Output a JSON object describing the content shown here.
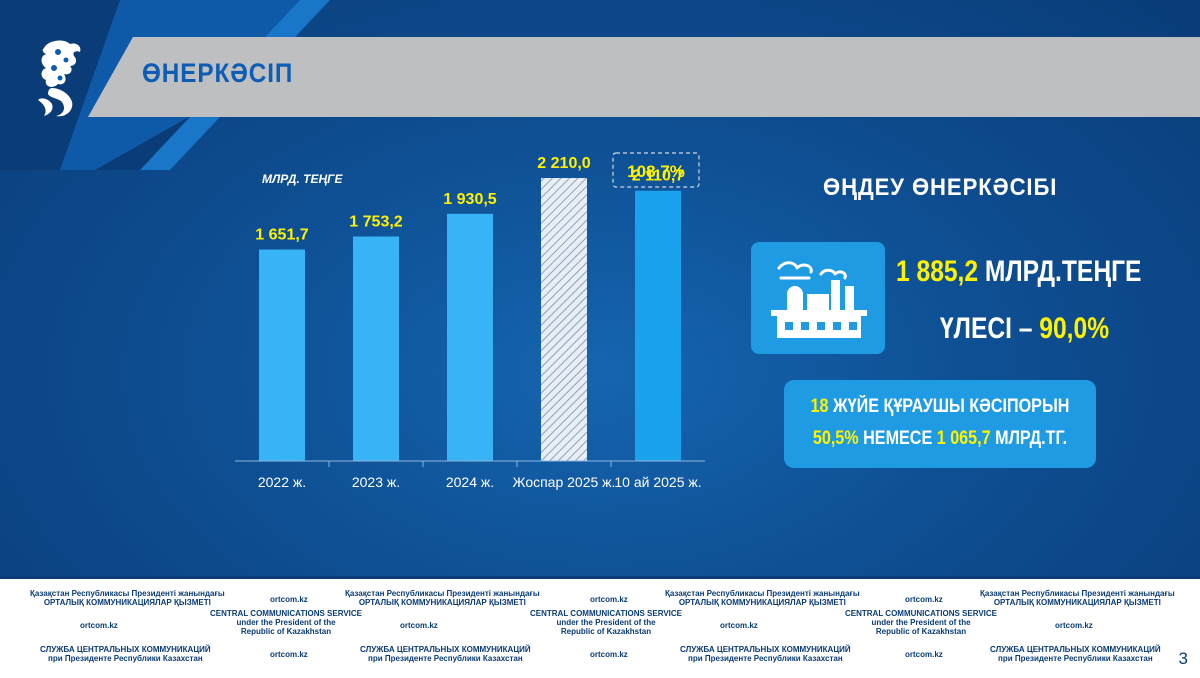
{
  "header": {
    "title": "ӨНЕРКӘСІП"
  },
  "chart_data": {
    "type": "bar",
    "unit_label": "МЛРД. ТЕҢГЕ",
    "categories": [
      "2022 ж.",
      "2023 ж.",
      "2024 ж.",
      "Жоспар 2025 ж.",
      "10 ай 2025 ж."
    ],
    "values": [
      1651.7,
      1753.2,
      1930.5,
      2210.0,
      2110.7
    ],
    "value_labels": [
      "1 651,7",
      "1 753,2",
      "1 930,5",
      "2 210,0",
      "2 110,7"
    ],
    "bar_styles": [
      "solid",
      "solid",
      "solid",
      "hatched",
      "solid"
    ],
    "callout": "108,7%",
    "ylim": [
      0,
      2500
    ],
    "grid": false
  },
  "panel": {
    "subheading": "ӨҢДЕУ ӨНЕРКӘСІБІ",
    "icon": "factory-icon",
    "amount": "1 885,2",
    "amount_unit": "МЛРД.ТЕҢГЕ",
    "share_label": "ҮЛЕСІ –",
    "share_value": "90,0%",
    "info": {
      "count": "18",
      "count_text": "ЖҮЙЕ ҚҰРАУШЫ КӘСІПОРЫН",
      "percent": "50,5%",
      "or_text": "НЕМЕСЕ",
      "amount": "1 065,7",
      "amount_unit": "МЛРД.ТГ."
    }
  },
  "footer": {
    "kz_line1": "Қазақстан Республикасы Президенті жанындағы",
    "kz_line2": "ОРТАЛЫҚ КОММУНИКАЦИЯЛАР ҚЫЗМЕТІ",
    "site": "ortcom.kz",
    "en_line1": "CENTRAL COMMUNICATIONS SERVICE",
    "en_line2": "under the President of the",
    "en_line3": "Republic of Kazakhstan",
    "ru_line1": "СЛУЖБА ЦЕНТРАЛЬНЫХ КОММУНИКАЦИЙ",
    "ru_line2": "при Президенте Республики Казахстан"
  },
  "page_number": "3",
  "colors": {
    "bar": "#37b4f5",
    "bar_last": "#1aa3ec",
    "value_text": "#fff200",
    "accent_text": "#0d5db5"
  }
}
